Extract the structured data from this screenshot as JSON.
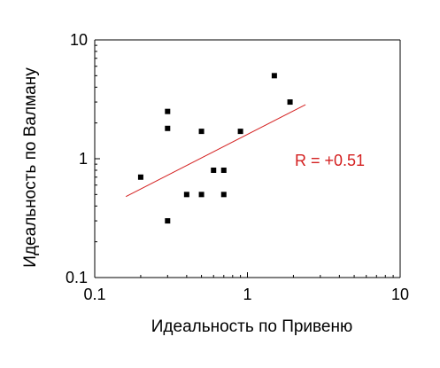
{
  "chart_data": {
    "type": "scatter",
    "title": "",
    "xlabel": "Идеальность по Привеню",
    "ylabel": "Идеальность по Валману",
    "xscale": "log",
    "yscale": "log",
    "xlim": [
      0.1,
      10
    ],
    "ylim": [
      0.1,
      10
    ],
    "x_ticks": [
      0.1,
      1,
      10
    ],
    "x_tick_labels": [
      "0.1",
      "1",
      "10"
    ],
    "y_ticks": [
      0.1,
      1,
      10
    ],
    "y_tick_labels": [
      "0.1",
      "1",
      "10"
    ],
    "grid": false,
    "legend": "none",
    "series": [
      {
        "points": [
          {
            "x": 0.2,
            "y": 0.7
          },
          {
            "x": 0.3,
            "y": 0.3
          },
          {
            "x": 0.3,
            "y": 1.8
          },
          {
            "x": 0.3,
            "y": 2.5
          },
          {
            "x": 0.4,
            "y": 0.5
          },
          {
            "x": 0.5,
            "y": 0.5
          },
          {
            "x": 0.5,
            "y": 1.7
          },
          {
            "x": 0.6,
            "y": 0.8
          },
          {
            "x": 0.7,
            "y": 0.8
          },
          {
            "x": 0.7,
            "y": 0.5
          },
          {
            "x": 0.9,
            "y": 1.7
          },
          {
            "x": 1.5,
            "y": 5
          },
          {
            "x": 1.9,
            "y": 3
          }
        ],
        "marker": "square",
        "color": "#000000"
      }
    ],
    "trendline": {
      "x": [
        0.16,
        2.4
      ],
      "y": [
        0.48,
        2.85
      ],
      "color": "#d42020"
    },
    "annotation": {
      "text": "R = +0.51",
      "color": "#d42020"
    }
  }
}
